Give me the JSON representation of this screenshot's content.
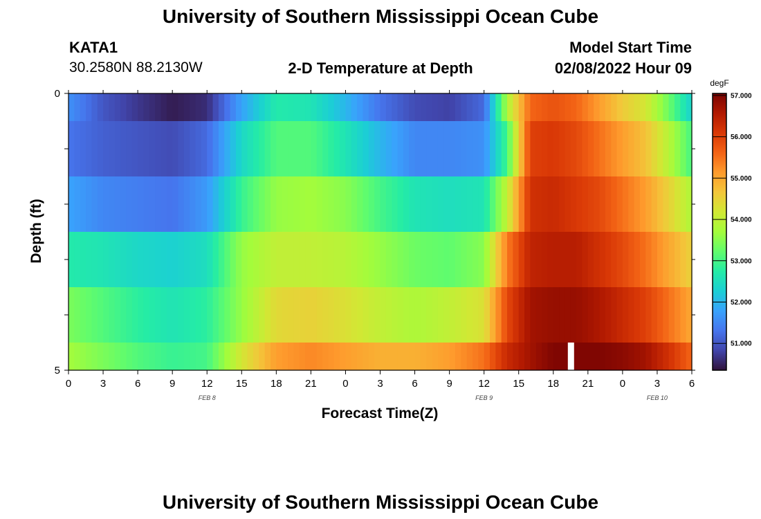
{
  "header": {
    "title": "University of Southern Mississippi Ocean Cube",
    "station_id": "KATA1",
    "station_coords": "30.2580N  88.2130W",
    "plot_title": "2-D Temperature at Depth",
    "model_start_label": "Model Start Time",
    "model_start_value": "02/08/2022 Hour 09"
  },
  "footer": {
    "title": "University of Southern Mississippi Ocean Cube"
  },
  "colors": {
    "colormap": [
      "#30123b",
      "#4145ab",
      "#4675ed",
      "#39a2fc",
      "#1bcfd4",
      "#24eca6",
      "#61fc6c",
      "#a4fc3b",
      "#d1e834",
      "#f3c63a",
      "#fe9b2d",
      "#f36315",
      "#d93806",
      "#b11901",
      "#7a0402"
    ],
    "missing": "#ffffff"
  },
  "chart_data": {
    "type": "heatmap",
    "title": "2-D Temperature at Depth",
    "xlabel": "Forecast Time(Z)",
    "ylabel": "Depth (ft)",
    "x_tick_labels": [
      "0",
      "3",
      "6",
      "9",
      "12",
      "15",
      "18",
      "21",
      "0",
      "3",
      "6",
      "9",
      "12",
      "15",
      "18",
      "21",
      "0",
      "3",
      "6"
    ],
    "x_hours_range": [
      0,
      54
    ],
    "date_labels": [
      {
        "label": "FEB 8",
        "hour": 12
      },
      {
        "label": "FEB 9",
        "hour": 36
      },
      {
        "label": "FEB 10",
        "hour": 51
      }
    ],
    "y_tick_labels": [
      "0",
      "5"
    ],
    "depth_range_ft": [
      0,
      5
    ],
    "depth_bands_ft": [
      [
        0,
        0.5
      ],
      [
        0.5,
        1.5
      ],
      [
        1.5,
        2.5
      ],
      [
        2.5,
        3.5
      ],
      [
        3.5,
        4.5
      ],
      [
        4.5,
        5.0
      ]
    ],
    "colorbar": {
      "label": "degF",
      "range": [
        50.35,
        57.05
      ],
      "ticks": [
        "51.000",
        "52.000",
        "53.000",
        "54.000",
        "55.000",
        "56.000",
        "57.000"
      ],
      "tick_values": [
        51,
        52,
        53,
        54,
        55,
        56,
        57
      ]
    },
    "time_keys": [
      0,
      3,
      6,
      9,
      12,
      15,
      18,
      21,
      24,
      27,
      30,
      33,
      36,
      38,
      40,
      42,
      44,
      46,
      48,
      50,
      52,
      54
    ],
    "bands": [
      {
        "depth": "0-0.5",
        "values": [
          51.6,
          51.0,
          50.7,
          50.45,
          50.6,
          51.8,
          52.7,
          52.6,
          52.0,
          51.3,
          50.9,
          50.8,
          51.2,
          53.8,
          55.6,
          55.8,
          55.6,
          55.1,
          54.6,
          54.2,
          53.3,
          52.3
        ]
      },
      {
        "depth": "0.5-1.5",
        "values": [
          51.3,
          51.1,
          51.0,
          50.9,
          51.2,
          52.4,
          53.1,
          53.1,
          52.6,
          52.0,
          51.5,
          51.5,
          51.6,
          53.0,
          56.0,
          56.1,
          55.9,
          55.5,
          55.1,
          54.7,
          53.9,
          53.0
        ]
      },
      {
        "depth": "1.5-2.5",
        "values": [
          51.8,
          51.5,
          51.4,
          51.3,
          51.7,
          52.9,
          53.6,
          53.7,
          53.5,
          53.0,
          52.6,
          52.5,
          52.6,
          54.0,
          56.2,
          56.3,
          56.1,
          55.9,
          55.5,
          55.1,
          54.5,
          53.8
        ]
      },
      {
        "depth": "2.5-3.5",
        "values": [
          52.7,
          52.6,
          52.4,
          52.3,
          52.5,
          53.6,
          54.0,
          54.0,
          53.9,
          53.6,
          53.3,
          53.2,
          53.5,
          55.4,
          56.4,
          56.5,
          56.5,
          56.2,
          55.9,
          55.5,
          55.0,
          54.5
        ]
      },
      {
        "depth": "3.5-4.5",
        "values": [
          53.4,
          53.1,
          52.8,
          52.6,
          52.8,
          53.6,
          54.4,
          54.5,
          54.3,
          54.0,
          53.8,
          54.0,
          54.3,
          55.9,
          56.7,
          56.8,
          56.8,
          56.6,
          56.3,
          56.0,
          55.5,
          55.0
        ]
      },
      {
        "depth": "4.5-5.0",
        "values": [
          53.7,
          53.4,
          53.1,
          52.9,
          53.0,
          54.2,
          55.1,
          55.3,
          55.1,
          54.9,
          54.9,
          55.1,
          55.5,
          56.3,
          56.7,
          57.0,
          57.0,
          57.0,
          56.9,
          56.7,
          56.2,
          55.6
        ]
      }
    ],
    "missing_data_hour": 43.5
  }
}
